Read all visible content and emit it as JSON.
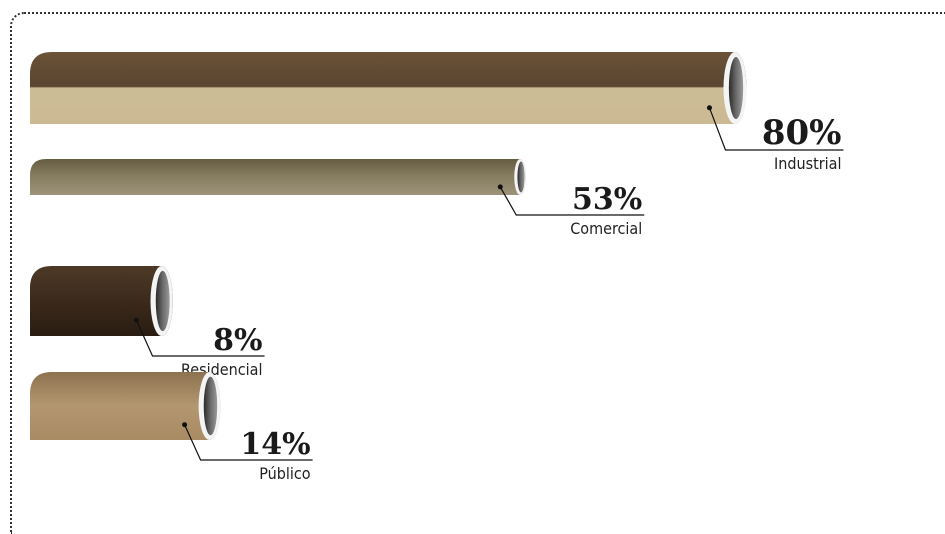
{
  "chart_data": {
    "type": "bar",
    "orientation": "horizontal",
    "title": "",
    "unit": "%",
    "categories": [
      "Industrial",
      "Comercial",
      "Residencial",
      "Público"
    ],
    "values": [
      80,
      53,
      8,
      14
    ],
    "value_labels": [
      "80%",
      "53%",
      "8%",
      "14%"
    ],
    "colors": [
      "#8a6c4c",
      "#8c8466",
      "#3a2a1e",
      "#a98d68"
    ],
    "xlim": [
      0,
      80
    ],
    "grid": false,
    "legend": "none"
  }
}
